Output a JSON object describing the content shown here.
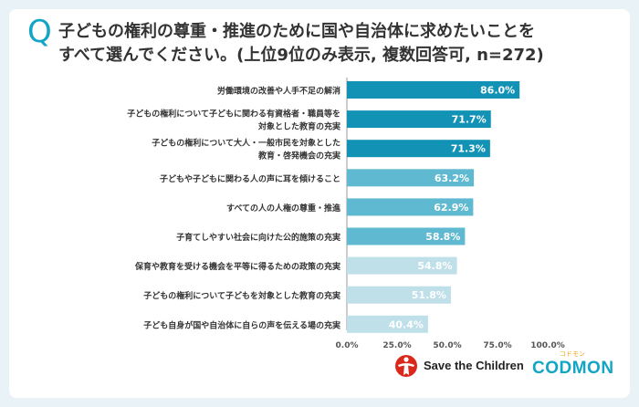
{
  "question_mark": "Q",
  "title_lines": [
    "子どもの権利の尊重・推進のために国や自治体に求めたいことを",
    "すべて選んでください。(上位9位のみ表示, 複数回答可, n=272)"
  ],
  "logos": {
    "save_the_children": "Save the Children",
    "codmon": "CODMON",
    "codmon_small": "コドモン"
  },
  "colors": {
    "background": "#e9f3f7",
    "bar_dark": "#1293b5",
    "bar_mid": "#5eb9d1",
    "bar_light": "#bfdfe9",
    "accent": "#13a5c5"
  },
  "chart_data": {
    "type": "bar",
    "orientation": "horizontal",
    "categories": [
      [
        "労働環境の改善や人手不足の解消"
      ],
      [
        "子どもの権利について子どもに関わる有資格者・職員等を",
        "対象とした教育の充実"
      ],
      [
        "子どもの権利について大人・一般市民を対象とした",
        "教育・啓発機会の充実"
      ],
      [
        "子どもや子どもに関わる人の声に耳を傾けること"
      ],
      [
        "すべての人の人権の尊重・推進"
      ],
      [
        "子育てしやすい社会に向けた公的施策の充実"
      ],
      [
        "保育や教育を受ける機会を平等に得るための政策の充実"
      ],
      [
        "子どもの権利について子どもを対象とした教育の充実"
      ],
      [
        "子ども自身が国や自治体に自らの声を伝える場の充実"
      ]
    ],
    "values": [
      86.0,
      71.7,
      71.3,
      63.2,
      62.9,
      58.8,
      54.8,
      51.8,
      40.4
    ],
    "value_labels": [
      "86.0%",
      "71.7%",
      "71.3%",
      "63.2%",
      "62.9%",
      "58.8%",
      "54.8%",
      "51.8%",
      "40.4%"
    ],
    "shade": [
      "dark",
      "dark",
      "dark",
      "mid",
      "mid",
      "mid",
      "light",
      "light",
      "light"
    ],
    "xlim": [
      0,
      100
    ],
    "ticks": [
      "0.0%",
      "25.0%",
      "50.0%",
      "75.0%",
      "100.0%"
    ],
    "grid": false
  }
}
